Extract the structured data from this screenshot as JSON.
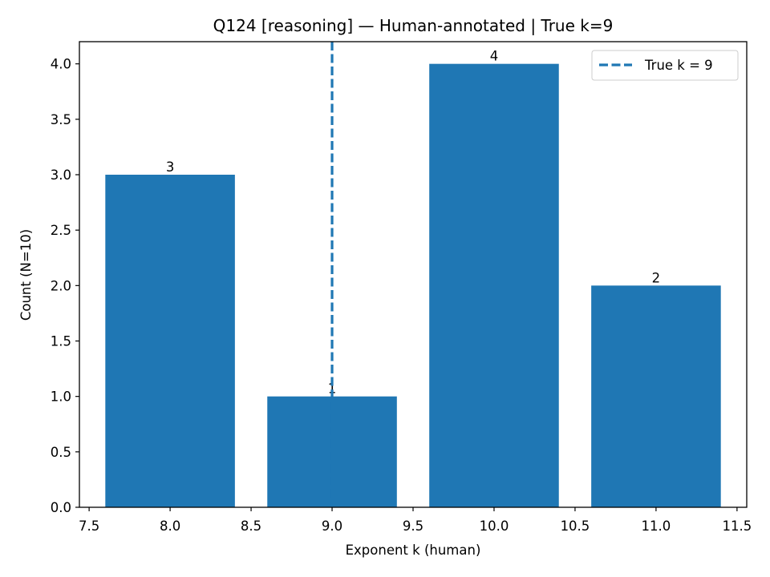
{
  "chart_data": {
    "type": "bar",
    "title": "Q124 [reasoning] — Human-annotated | True k=9",
    "xlabel": "Exponent k (human)",
    "ylabel": "Count (N=10)",
    "bar_width": 0.8,
    "xlim": [
      7.44,
      11.56
    ],
    "ylim": [
      0,
      4.2
    ],
    "xticks": [
      "7.5",
      "8.0",
      "8.5",
      "9.0",
      "9.5",
      "10.0",
      "10.5",
      "11.0",
      "11.5"
    ],
    "yticks": [
      "0.0",
      "0.5",
      "1.0",
      "1.5",
      "2.0",
      "2.5",
      "3.0",
      "3.5",
      "4.0"
    ],
    "x": [
      8,
      9,
      10,
      11
    ],
    "values": [
      3,
      1,
      4,
      2
    ],
    "data_labels": [
      "3",
      "1",
      "4",
      "2"
    ],
    "bar_color": "#1f77b4",
    "reference_line": {
      "x": 9,
      "label": "True k = 9",
      "style": "dashed",
      "color": "#1f77b4"
    },
    "legend": {
      "location": "top-right",
      "entries": [
        "True k = 9"
      ]
    },
    "grid": false
  }
}
